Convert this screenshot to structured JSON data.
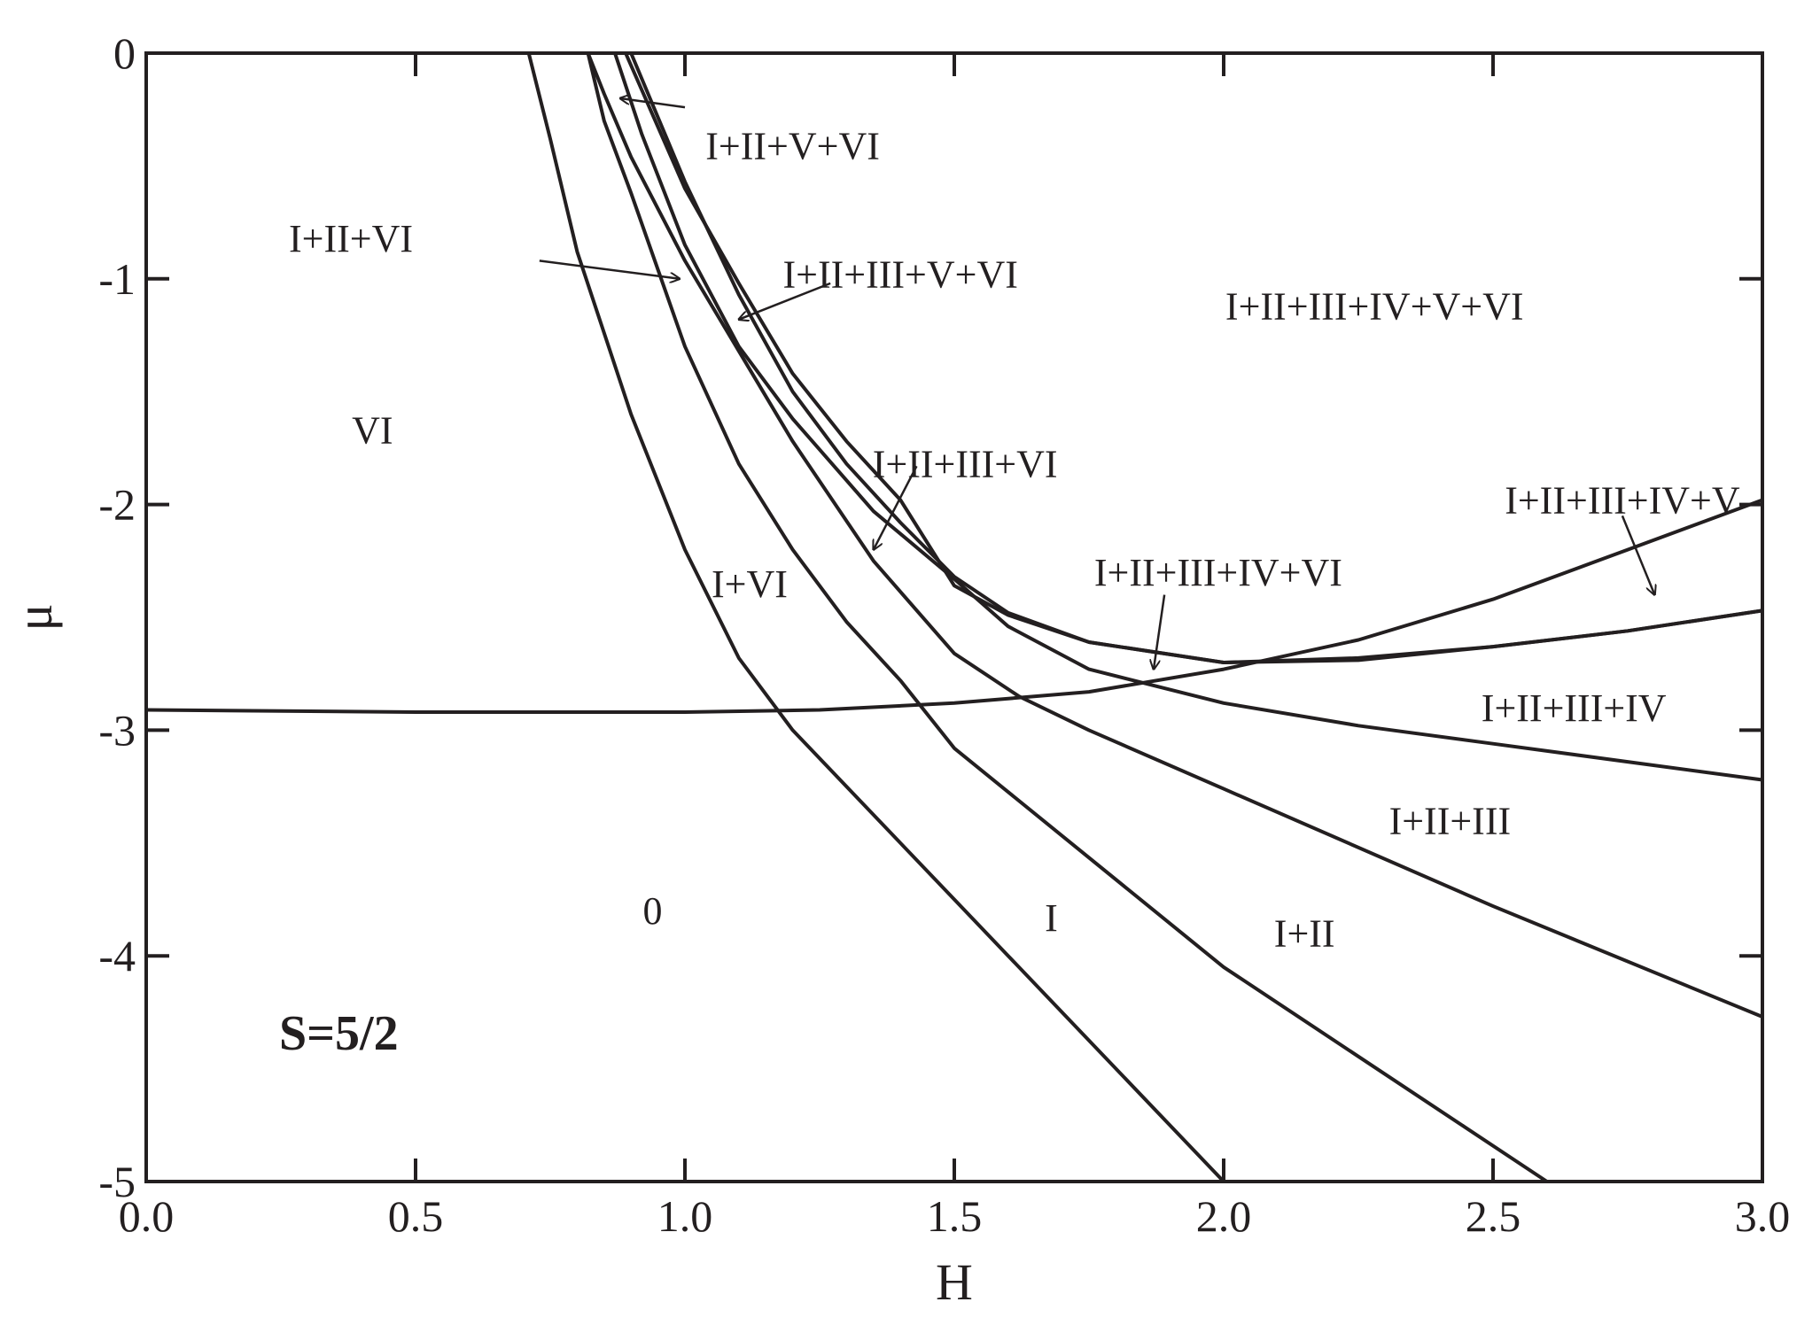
{
  "chart_data": {
    "type": "line",
    "title": "",
    "xlabel": "H",
    "ylabel": "μ",
    "xlim": [
      0.0,
      3.0
    ],
    "ylim": [
      -5,
      0
    ],
    "x_ticks": [
      "0.0",
      "0.5",
      "1.0",
      "1.5",
      "2.0",
      "2.5",
      "3.0"
    ],
    "y_ticks": [
      "0",
      "-1",
      "-2",
      "-3",
      "-4",
      "-5"
    ],
    "annotation": "S=5/2",
    "grid": false,
    "legend": "none",
    "series": [
      {
        "points": [
          [
            0.0,
            -2.91
          ],
          [
            0.5,
            -2.92
          ],
          [
            1.0,
            -2.92
          ],
          [
            1.25,
            -2.91
          ],
          [
            1.5,
            -2.88
          ],
          [
            1.75,
            -2.83
          ],
          [
            2.0,
            -2.73
          ],
          [
            2.25,
            -2.6
          ],
          [
            2.5,
            -2.42
          ],
          [
            2.75,
            -2.2
          ],
          [
            3.0,
            -1.98
          ]
        ]
      },
      {
        "points": [
          [
            0.71,
            0.0
          ],
          [
            0.75,
            -0.38
          ],
          [
            0.8,
            -0.88
          ],
          [
            0.9,
            -1.6
          ],
          [
            1.0,
            -2.2
          ],
          [
            1.1,
            -2.68
          ],
          [
            1.2,
            -3.0
          ],
          [
            1.6,
            -4.0
          ],
          [
            2.0,
            -5.0
          ]
        ]
      },
      {
        "points": [
          [
            0.82,
            0.0
          ],
          [
            0.85,
            -0.3
          ],
          [
            0.9,
            -0.62
          ],
          [
            1.0,
            -1.3
          ],
          [
            1.1,
            -1.82
          ],
          [
            1.2,
            -2.2
          ],
          [
            1.3,
            -2.52
          ],
          [
            1.4,
            -2.78
          ],
          [
            1.5,
            -3.08
          ],
          [
            2.0,
            -4.05
          ],
          [
            2.6,
            -5.0
          ]
        ]
      },
      {
        "points": [
          [
            0.82,
            0.0
          ],
          [
            0.85,
            -0.18
          ],
          [
            0.9,
            -0.46
          ],
          [
            1.0,
            -0.92
          ],
          [
            1.1,
            -1.32
          ],
          [
            1.2,
            -1.72
          ],
          [
            1.35,
            -2.25
          ],
          [
            1.5,
            -2.66
          ],
          [
            1.62,
            -2.85
          ],
          [
            1.75,
            -3.0
          ],
          [
            2.0,
            -3.26
          ],
          [
            2.5,
            -3.78
          ],
          [
            3.0,
            -4.27
          ]
        ]
      },
      {
        "points": [
          [
            0.87,
            0.0
          ],
          [
            0.92,
            -0.36
          ],
          [
            1.0,
            -0.85
          ],
          [
            1.1,
            -1.3
          ],
          [
            1.2,
            -1.62
          ],
          [
            1.35,
            -2.03
          ],
          [
            1.5,
            -2.33
          ],
          [
            1.6,
            -2.54
          ],
          [
            1.75,
            -2.73
          ],
          [
            2.0,
            -2.88
          ],
          [
            2.25,
            -2.98
          ],
          [
            2.5,
            -3.06
          ],
          [
            2.75,
            -3.14
          ],
          [
            3.0,
            -3.22
          ]
        ]
      },
      {
        "points": [
          [
            0.89,
            0.0
          ],
          [
            1.0,
            -0.6
          ],
          [
            1.1,
            -1.02
          ],
          [
            1.2,
            -1.42
          ],
          [
            1.3,
            -1.72
          ],
          [
            1.4,
            -1.98
          ],
          [
            1.5,
            -2.36
          ],
          [
            1.6,
            -2.49
          ],
          [
            1.75,
            -2.61
          ],
          [
            2.0,
            -2.7
          ],
          [
            2.25,
            -2.68
          ],
          [
            2.5,
            -2.63
          ],
          [
            2.75,
            -2.56
          ],
          [
            3.0,
            -2.47
          ]
        ]
      },
      {
        "points": [
          [
            0.9,
            0.0
          ],
          [
            1.0,
            -0.57
          ],
          [
            1.1,
            -1.07
          ],
          [
            1.2,
            -1.5
          ],
          [
            1.3,
            -1.82
          ],
          [
            1.4,
            -2.08
          ],
          [
            1.5,
            -2.32
          ],
          [
            1.6,
            -2.48
          ],
          [
            1.75,
            -2.61
          ],
          [
            2.0,
            -2.7
          ],
          [
            2.25,
            -2.69
          ],
          [
            2.5,
            -2.63
          ],
          [
            2.75,
            -2.56
          ],
          [
            3.0,
            -2.47
          ]
        ]
      }
    ],
    "region_labels": [
      {
        "text": "VI",
        "x": 0.42,
        "y": -1.67
      },
      {
        "text": "I+VI",
        "x": 1.12,
        "y": -2.35
      },
      {
        "text": "0",
        "x": 0.94,
        "y": -3.8
      },
      {
        "text": "I",
        "x": 1.68,
        "y": -3.83
      },
      {
        "text": "I+II",
        "x": 2.15,
        "y": -3.9
      },
      {
        "text": "I+II+III",
        "x": 2.42,
        "y": -3.4
      },
      {
        "text": "I+II+III+IV",
        "x": 2.65,
        "y": -2.9
      },
      {
        "text": "I+II+III+IV+V+VI",
        "x": 2.28,
        "y": -1.12
      },
      {
        "text": "I+II+V+VI",
        "x": 1.2,
        "y": -0.41
      },
      {
        "text": "I+II+VI",
        "x": 0.38,
        "y": -0.82
      },
      {
        "text": "I+II+III+V+VI",
        "x": 1.4,
        "y": -0.98
      },
      {
        "text": "I+II+III+VI",
        "x": 1.52,
        "y": -1.82
      },
      {
        "text": "I+II+III+IV+VI",
        "x": 1.99,
        "y": -2.3
      },
      {
        "text": "I+II+III+IV+V",
        "x": 2.74,
        "y": -1.98
      }
    ],
    "arrows": [
      {
        "from": [
          1.0,
          -0.24
        ],
        "to": [
          0.88,
          -0.2
        ]
      },
      {
        "from": [
          0.73,
          -0.92
        ],
        "to": [
          0.99,
          -1.0
        ]
      },
      {
        "from": [
          1.27,
          -1.02
        ],
        "to": [
          1.1,
          -1.18
        ]
      },
      {
        "from": [
          1.43,
          -1.83
        ],
        "to": [
          1.35,
          -2.2
        ]
      },
      {
        "from": [
          1.89,
          -2.4
        ],
        "to": [
          1.87,
          -2.73
        ]
      },
      {
        "from": [
          2.74,
          -2.05
        ],
        "to": [
          2.8,
          -2.4
        ]
      }
    ]
  }
}
